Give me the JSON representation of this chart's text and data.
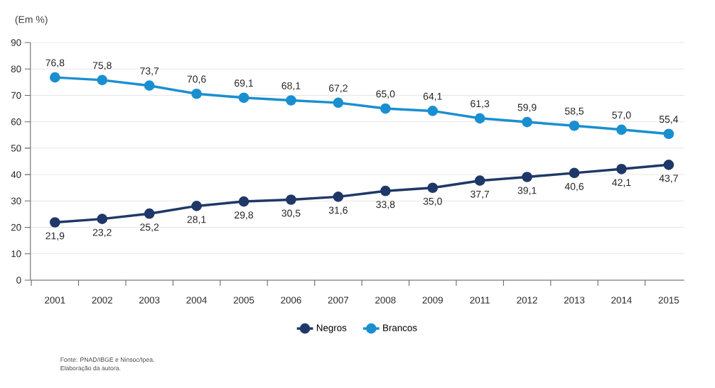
{
  "chart_data": {
    "type": "line",
    "ylabel": "(Em %)",
    "categories": [
      "2001",
      "2002",
      "2003",
      "2004",
      "2005",
      "2006",
      "2007",
      "2008",
      "2009",
      "2011",
      "2012",
      "2013",
      "2014",
      "2015"
    ],
    "series": [
      {
        "name": "Negros",
        "color": "#1f3868",
        "values": [
          21.9,
          23.2,
          25.2,
          28.1,
          29.8,
          30.5,
          31.6,
          33.8,
          35.0,
          37.7,
          39.1,
          40.6,
          42.1,
          43.7
        ],
        "value_labels": [
          "21,9",
          "23,2",
          "25,2",
          "28,1",
          "29,8",
          "30,5",
          "31,6",
          "33,8",
          "35,0",
          "37,7",
          "39,1",
          "40,6",
          "42,1",
          "43,7"
        ]
      },
      {
        "name": "Brancos",
        "color": "#1a8fd0",
        "values": [
          76.8,
          75.8,
          73.7,
          70.6,
          69.1,
          68.1,
          67.2,
          65.0,
          64.1,
          61.3,
          59.9,
          58.5,
          57.0,
          55.4
        ],
        "value_labels": [
          "76,8",
          "75,8",
          "73,7",
          "70,6",
          "69,1",
          "68,1",
          "67,2",
          "65,0",
          "64,1",
          "61,3",
          "59,9",
          "58,5",
          "57,0",
          "55,4"
        ]
      }
    ],
    "ylim": [
      0,
      90
    ],
    "yticks": [
      0,
      10,
      20,
      30,
      40,
      50,
      60,
      70,
      80,
      90
    ],
    "grid": "y",
    "legend": "bottom",
    "marker": "circle",
    "line_style": "solid",
    "annotations": [
      "Fonte: PNAD/IBGE e Ninsoc/Ipea.",
      "Elaboração da autora."
    ]
  }
}
